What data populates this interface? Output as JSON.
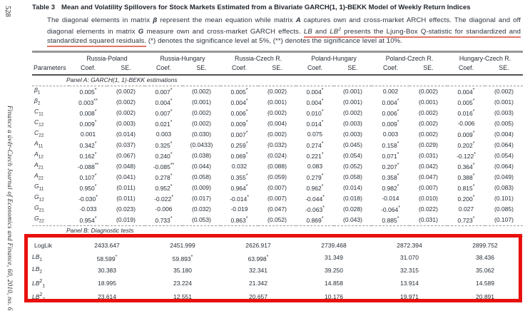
{
  "page": {
    "page_number": "528",
    "journal_sidebar": "Finance a úvěr-Czech Journal of Economics and Finance, 60, 2010, no. 6"
  },
  "title": {
    "label": "Table 3",
    "text": "Mean and Volatility Spillovers for Stock Markets Estimated from a Bivariate GARCH(1, 1)-BEKK Model of Weekly Return Indices"
  },
  "caption": {
    "parts": [
      {
        "t": "The diagonal elements in matrix "
      },
      {
        "t": "β",
        "bi": true
      },
      {
        "t": " represent the mean equation while matrix "
      },
      {
        "t": "A",
        "bi": true
      },
      {
        "t": " captures own and cross-market ARCH effects. The diagonal and off diagonal elements in matrix "
      },
      {
        "t": "G",
        "bi": true
      },
      {
        "t": " measure own and cross-market GARCH effects. "
      },
      {
        "t": "LB",
        "i": true,
        "u": true
      },
      {
        "t": " and ",
        "u": true
      },
      {
        "t": "LB",
        "i": true,
        "u": true
      },
      {
        "t": "2",
        "i": true,
        "u": true,
        "sup": true
      },
      {
        "t": " presents the Ljung-Box Q-statistic for standardized and standardized squared residuals.",
        "u": true
      },
      {
        "t": " (*) denotes the significance level at 5%, (**) denotes the significance level at 10%."
      }
    ]
  },
  "table": {
    "pairs": [
      "Russia-Poland",
      "Russia-Hungary",
      "Russia-Czech R.",
      "Poland-Hungary",
      "Poland-Czech R.",
      "Hungary-Czech R."
    ],
    "col_labels": {
      "params": "Parameters",
      "coef": "Coef.",
      "se": "SE."
    },
    "panel_a": {
      "label": "Panel A: GARCH(1, 1)-BEKK estimations",
      "rows": [
        {
          "param": {
            "t": "β",
            "sub": "1"
          },
          "cells": [
            [
              "0.005*",
              "(0.002)"
            ],
            [
              "0.007*",
              "(0.002)"
            ],
            [
              "0.005*",
              "(0.002)"
            ],
            [
              "0.004*",
              "(0.001)"
            ],
            [
              "0.002",
              "(0.002)"
            ],
            [
              "0.004*",
              "(0.002)"
            ]
          ]
        },
        {
          "param": {
            "t": "β",
            "sub": "2"
          },
          "cells": [
            [
              "0.003**",
              "(0.002)"
            ],
            [
              "0.004*",
              "(0.001)"
            ],
            [
              "0.004*",
              "(0.001)"
            ],
            [
              "0.004*",
              "(0.001)"
            ],
            [
              "0.004*",
              "(0.001)"
            ],
            [
              "0.005*",
              "(0.001)"
            ]
          ]
        },
        {
          "param": {
            "t": "C",
            "sub": "11"
          },
          "cells": [
            [
              "0.008*",
              "(0.002)"
            ],
            [
              "0.007*",
              "(0.002)"
            ],
            [
              "0.006*",
              "(0.002)"
            ],
            [
              "0.010*",
              "(0.002)"
            ],
            [
              "0.006*",
              "(0.002)"
            ],
            [
              "0.016*",
              "(0.003)"
            ]
          ]
        },
        {
          "param": {
            "t": "C",
            "sub": "12"
          },
          "cells": [
            [
              "0.009*",
              "(0.003)"
            ],
            [
              "0.021*",
              "(0.002)"
            ],
            [
              "0.009*",
              "(0.004)"
            ],
            [
              "0.014*",
              "(0.003)"
            ],
            [
              "0.009*",
              "(0.002)"
            ],
            [
              "-0.006",
              "(0.005)"
            ]
          ]
        },
        {
          "param": {
            "t": "C",
            "sub": "22"
          },
          "cells": [
            [
              "0.001",
              "(0.014)"
            ],
            [
              "0.003",
              "(0.030)"
            ],
            [
              "0.007*",
              "(0.002)"
            ],
            [
              "0.075",
              "(0.003)"
            ],
            [
              "0.003",
              "(0.002)"
            ],
            [
              "0.009*",
              "(0.004)"
            ]
          ]
        },
        {
          "param": {
            "t": "A",
            "sub": "11"
          },
          "cells": [
            [
              "0.342*",
              "(0.037)"
            ],
            [
              "0.325*",
              "(0.0433)"
            ],
            [
              "0.259*",
              "(0.032)"
            ],
            [
              "0.274*",
              "(0.045)"
            ],
            [
              "0.158*",
              "(0.029)"
            ],
            [
              "0.202*",
              "(0.064)"
            ]
          ]
        },
        {
          "param": {
            "t": "A",
            "sub": "12"
          },
          "cells": [
            [
              "0.162*",
              "(0.067)"
            ],
            [
              "0.240*",
              "(0.038)"
            ],
            [
              "0.069*",
              "(0.024)"
            ],
            [
              "0.221*",
              "(0.054)"
            ],
            [
              "0.071*",
              "(0.031)"
            ],
            [
              "-0.122*",
              "(0.054)"
            ]
          ]
        },
        {
          "param": {
            "t": "A",
            "sub": "21"
          },
          "cells": [
            [
              "-0.088**",
              "(0.048)"
            ],
            [
              "-0.085**",
              "(0.044)"
            ],
            [
              "0.032",
              "(0.088)"
            ],
            [
              "0.083",
              "(0.052)"
            ],
            [
              "0.207*",
              "(0.042)"
            ],
            [
              "0.364*",
              "(0.064)"
            ]
          ]
        },
        {
          "param": {
            "t": "A",
            "sub": "22"
          },
          "cells": [
            [
              "0.107*",
              "(0.041)"
            ],
            [
              "0.278*",
              "(0.058)"
            ],
            [
              "0.355*",
              "(0.059)"
            ],
            [
              "0.279*",
              "(0.058)"
            ],
            [
              "0.358*",
              "(0.047)"
            ],
            [
              "0.388*",
              "(0.049)"
            ]
          ]
        },
        {
          "param": {
            "t": "G",
            "sub": "11"
          },
          "cells": [
            [
              "0.950*",
              "(0.011)"
            ],
            [
              "0.952*",
              "(0.009)"
            ],
            [
              "0.964*",
              "(0.007)"
            ],
            [
              "0.962*",
              "(0.014)"
            ],
            [
              "0.982*",
              "(0.007)"
            ],
            [
              "0.815*",
              "(0.083)"
            ]
          ]
        },
        {
          "param": {
            "t": "G",
            "sub": "12"
          },
          "cells": [
            [
              "-0.030*",
              "(0.011)"
            ],
            [
              "-0.022*",
              "(0.017)"
            ],
            [
              "-0.014*",
              "(0.007)"
            ],
            [
              "-0.044*",
              "(0.018)"
            ],
            [
              "-0.014",
              "(0.010)"
            ],
            [
              "0.200*",
              "(0.101)"
            ]
          ]
        },
        {
          "param": {
            "t": "G",
            "sub": "21"
          },
          "cells": [
            [
              "-0.033",
              "(0.023)"
            ],
            [
              "-0.006",
              "(0.032)"
            ],
            [
              "-0.019",
              "(0.047)"
            ],
            [
              "-0.063*",
              "(0.028)"
            ],
            [
              "-0.064*",
              "(0.022)"
            ],
            [
              "0.027",
              "(0.085)"
            ]
          ]
        },
        {
          "param": {
            "t": "G",
            "sub": "22"
          },
          "cells": [
            [
              "0.954*",
              "(0.019)"
            ],
            [
              "0.733*",
              "(0.053)"
            ],
            [
              "0.863*",
              "(0.052)"
            ],
            [
              "0.869*",
              "(0.043)"
            ],
            [
              "0.885*",
              "(0.031)"
            ],
            [
              "0.723*",
              "(0.107)"
            ]
          ]
        }
      ]
    },
    "panel_b": {
      "label": "Panel B: Diagnostic tests",
      "rows": [
        {
          "param": {
            "t": "LogLik",
            "plain": true
          },
          "values": [
            "2433.647",
            "2451.999",
            "2626.917",
            "2739.468",
            "2872.394",
            "2899.752"
          ]
        },
        {
          "param": {
            "t": "LB",
            "sub": "1"
          },
          "values": [
            "58.599*",
            "59.893*",
            "63.998*",
            "31.349",
            "31.070",
            "38.436"
          ]
        },
        {
          "param": {
            "t": "LB",
            "sub": "2"
          },
          "values": [
            "30.383",
            "35.180",
            "32.341",
            "39.250",
            "32.315",
            "35.062"
          ]
        },
        {
          "param": {
            "t": "LB",
            "sup": "2",
            "sub": "1"
          },
          "values": [
            "18.995",
            "23.224",
            "21.342",
            "14.858",
            "13.914",
            "14.589"
          ]
        },
        {
          "param": {
            "t": "LB",
            "sup": "2",
            "sub": "2"
          },
          "values": [
            "23.614",
            "12.551",
            "20.657",
            "10.176",
            "19.971",
            "20.891"
          ]
        }
      ]
    }
  },
  "annotations": {
    "box_color": "#e8100c",
    "underline_color": "#e4756a"
  }
}
